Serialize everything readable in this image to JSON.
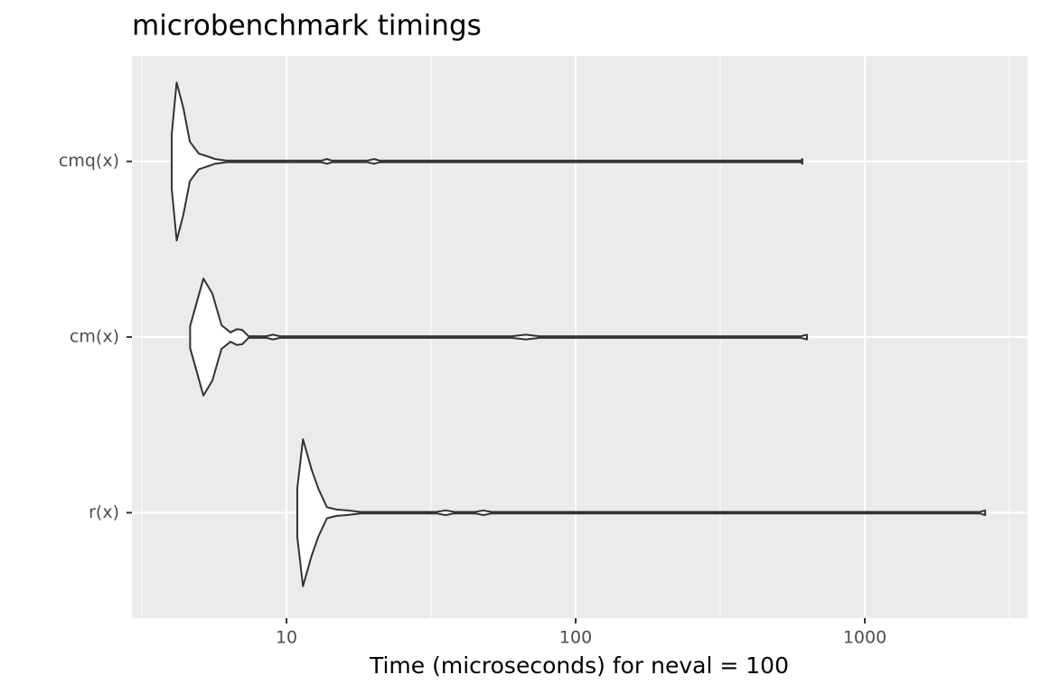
{
  "chart_data": {
    "type": "violin",
    "title": "microbenchmark timings",
    "x_label": "Time (microseconds) for neval = 100",
    "categories": [
      "cmq(x)",
      "cm(x)",
      "r(x)"
    ],
    "violins": [
      {
        "x": [
          4.01,
          4.17,
          4.4,
          4.63,
          4.97,
          5.27,
          5.66,
          6.2,
          10,
          13.2,
          13.8,
          14.4,
          19,
          20.1,
          21,
          100,
          600,
          608
        ],
        "width": [
          0.35,
          1,
          0.67,
          0.25,
          0.1,
          0.07,
          0.03,
          0.01,
          0.01,
          0.01,
          0.03,
          0.01,
          0.01,
          0.03,
          0.01,
          0.01,
          0.01,
          0.03
        ]
      },
      {
        "x": [
          4.64,
          5.16,
          5.54,
          5.96,
          6.4,
          6.73,
          7.03,
          7.39,
          8.5,
          8.98,
          9.5,
          60,
          67.3,
          75,
          600,
          631
        ],
        "width": [
          0.14,
          0.74,
          0.55,
          0.15,
          0.06,
          0.1,
          0.09,
          0.01,
          0.01,
          0.03,
          0.01,
          0.01,
          0.03,
          0.01,
          0.01,
          0.03
        ]
      },
      {
        "x": [
          10.9,
          11.4,
          12.2,
          12.9,
          13.8,
          14.9,
          16.2,
          18,
          33,
          35.5,
          38,
          45,
          48,
          51,
          2500,
          2608
        ],
        "width": [
          0.31,
          0.93,
          0.55,
          0.3,
          0.07,
          0.04,
          0.03,
          0.01,
          0.01,
          0.03,
          0.01,
          0.01,
          0.03,
          0.01,
          0.01,
          0.03
        ]
      }
    ],
    "color": "#333333",
    "fill": "#ffffff",
    "xscale": "log",
    "xlim": [
      2.92,
      3652
    ],
    "xticks": [
      10,
      100,
      1000
    ],
    "xminor": [
      3.162,
      31.62,
      316.2,
      3162
    ],
    "grid": true
  }
}
